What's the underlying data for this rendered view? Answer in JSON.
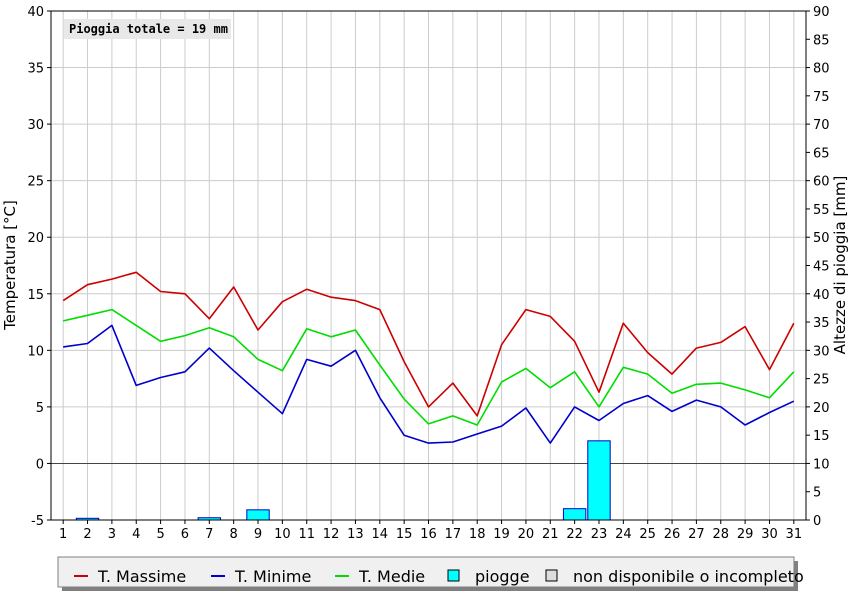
{
  "chart_data": {
    "type": "line",
    "annotation": "Pioggia totale = 19 mm",
    "ylabel_left": "Temperatura [°C]",
    "ylabel_right": "Altezze di pioggia [mm]",
    "ylim_left": [
      -5,
      40
    ],
    "ylim_right": [
      0,
      90
    ],
    "yticks_left": [
      -5,
      0,
      5,
      10,
      15,
      20,
      25,
      30,
      35,
      40
    ],
    "yticks_right": [
      0,
      5,
      10,
      15,
      20,
      25,
      30,
      35,
      40,
      45,
      50,
      55,
      60,
      65,
      70,
      75,
      80,
      85,
      90
    ],
    "categories": [
      "1",
      "2",
      "3",
      "4",
      "5",
      "6",
      "7",
      "8",
      "9",
      "10",
      "11",
      "12",
      "13",
      "14",
      "15",
      "16",
      "17",
      "18",
      "19",
      "20",
      "21",
      "22",
      "23",
      "24",
      "25",
      "26",
      "27",
      "28",
      "29",
      "30",
      "31"
    ],
    "grid": true,
    "legend_position": "bottom",
    "series": [
      {
        "name": "T. Massime",
        "color": "#cc0000",
        "values": [
          14.4,
          15.8,
          16.3,
          16.9,
          15.2,
          15.0,
          12.8,
          15.6,
          11.8,
          14.3,
          15.4,
          14.7,
          14.4,
          13.6,
          9.0,
          5.0,
          7.1,
          4.2,
          10.5,
          13.6,
          13.0,
          10.8,
          6.3,
          12.4,
          9.8,
          7.9,
          10.2,
          10.7,
          12.1,
          8.3,
          12.4
        ]
      },
      {
        "name": "T. Minime",
        "color": "#0000cc",
        "values": [
          10.3,
          10.6,
          12.2,
          6.9,
          7.6,
          8.1,
          10.2,
          8.2,
          6.3,
          4.4,
          9.2,
          8.6,
          10.0,
          5.8,
          2.5,
          1.8,
          1.9,
          2.6,
          3.3,
          4.9,
          1.8,
          5.0,
          3.8,
          5.3,
          6.0,
          4.6,
          5.6,
          5.0,
          3.4,
          4.5,
          5.5
        ]
      },
      {
        "name": "T. Medie",
        "color": "#00dd00",
        "values": [
          12.6,
          13.1,
          13.6,
          12.2,
          10.8,
          11.3,
          12.0,
          11.2,
          9.2,
          8.2,
          11.9,
          11.2,
          11.8,
          8.7,
          5.7,
          3.5,
          4.2,
          3.4,
          7.2,
          8.4,
          6.7,
          8.1,
          5.0,
          8.5,
          7.9,
          6.2,
          7.0,
          7.1,
          6.5,
          5.8,
          8.1
        ]
      }
    ],
    "rain": {
      "name": "piogge",
      "color": "#00ffff",
      "values": [
        0,
        0.3,
        0,
        0,
        0,
        0,
        0.4,
        0,
        1.8,
        0,
        0,
        0,
        0,
        0,
        0,
        0,
        0,
        0,
        0,
        0,
        0,
        2.0,
        14.0,
        0,
        0,
        0,
        0,
        0,
        0,
        0,
        0
      ]
    },
    "legend": [
      {
        "label": "T. Massime",
        "kind": "line",
        "color": "#cc0000"
      },
      {
        "label": "T. Minime",
        "kind": "line",
        "color": "#0000cc"
      },
      {
        "label": "T. Medie",
        "kind": "line",
        "color": "#00dd00"
      },
      {
        "label": "piogge",
        "kind": "box",
        "color": "#00ffff"
      },
      {
        "label": "non disponibile o incompleto",
        "kind": "box",
        "color": "#dddddd"
      }
    ]
  }
}
